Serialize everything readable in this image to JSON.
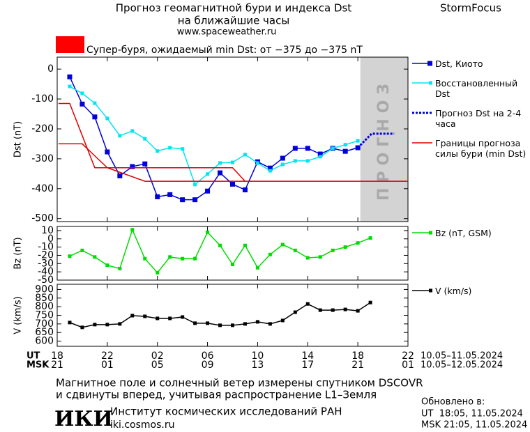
{
  "header": {
    "title": "Прогноз геомагнитной бури и индекса Dst",
    "subtitle": "на ближайшие часы",
    "url": "www.spaceweather.ru",
    "brand": "StormFocus"
  },
  "alert": {
    "color": "#ff0000",
    "text": "Супер-буря, ожидаемый min Dst: от −375 до −375 nT"
  },
  "chart_data": [
    {
      "type": "line",
      "ylabel": "Dst (nT)",
      "xlim": [
        0,
        28
      ],
      "ylim": [
        -510,
        40
      ],
      "yticks": [
        0,
        -100,
        -200,
        -300,
        -400,
        -500
      ],
      "forecast_region": {
        "x": [
          24.2,
          28
        ],
        "label": "ПРОГНОЗ",
        "color": "#d3d3d3"
      },
      "series": [
        {
          "name": "Dst, Киото",
          "color": "#0000dd",
          "marker": "square",
          "x": [
            1,
            2,
            3,
            4,
            5,
            6,
            7,
            8,
            9,
            10,
            11,
            12,
            13,
            14,
            15,
            16,
            17,
            18,
            19,
            20,
            21,
            22,
            23,
            24
          ],
          "values": [
            -26,
            -117,
            -160,
            -277,
            -357,
            -326,
            -317,
            -427,
            -420,
            -437,
            -437,
            -408,
            -347,
            -385,
            -404,
            -310,
            -331,
            -298,
            -265,
            -265,
            -284,
            -265,
            -275,
            -263
          ]
        },
        {
          "name": "Восстановленный Dst",
          "color": "#00e5ee",
          "marker": "small-square",
          "x": [
            1,
            2,
            3,
            4,
            5,
            6,
            7,
            8,
            9,
            10,
            11,
            12,
            13,
            14,
            15,
            16,
            17,
            18,
            19,
            20,
            21,
            22,
            23,
            24
          ],
          "values": [
            -58,
            -81,
            -114,
            -165,
            -223,
            -207,
            -233,
            -274,
            -263,
            -267,
            -386,
            -351,
            -314,
            -312,
            -286,
            -314,
            -340,
            -319,
            -307,
            -307,
            -293,
            -265,
            -253,
            -240
          ]
        },
        {
          "name": "Прогноз Dst на 2-4 часа",
          "color": "#0000dd",
          "style": "dotted",
          "x": [
            24,
            25.1,
            26.9
          ],
          "values": [
            -263,
            -216,
            -216
          ]
        },
        {
          "name": "Границы прогноза силы бури (min Dst)",
          "color": "#dd0000",
          "x": [
            0.1,
            1,
            3,
            14,
            15,
            28,
            null,
            0.1,
            2,
            4,
            7,
            28
          ],
          "values": [
            -115,
            -115,
            -330,
            -330,
            -375,
            -375,
            null,
            -250,
            -250,
            -330,
            -375,
            -375
          ]
        }
      ]
    },
    {
      "type": "line",
      "ylabel": "Bz (nT)",
      "xlim": [
        0,
        28
      ],
      "ylim": [
        -50,
        15
      ],
      "yticks": [
        10,
        0,
        -10,
        -20,
        -30,
        -40,
        -50
      ],
      "series": [
        {
          "name": "Bz (nT, GSM)",
          "color": "#00dd00",
          "marker": "small-square",
          "x": [
            1,
            2,
            3,
            4,
            5,
            6,
            7,
            8,
            9,
            10,
            11,
            12,
            13,
            14,
            15,
            16,
            17,
            18,
            19,
            20,
            21,
            22,
            23,
            24,
            25
          ],
          "values": [
            -21,
            -14,
            -22,
            -32,
            -36,
            11,
            -24,
            -41,
            -22,
            -24,
            -24,
            8,
            -8,
            -31,
            -8,
            -35,
            -19,
            -7,
            -14,
            -23,
            -22,
            -14,
            -10,
            -5,
            1
          ]
        }
      ]
    },
    {
      "type": "line",
      "ylabel": "V (km/s)",
      "xlim": [
        0,
        28
      ],
      "ylim": [
        570,
        930
      ],
      "yticks": [
        900,
        850,
        800,
        750,
        700,
        650,
        600
      ],
      "xticks": [
        {
          "value": 0,
          "label": "18"
        },
        {
          "value": 4,
          "label": "22"
        },
        {
          "value": 8,
          "label": "02"
        },
        {
          "value": 12,
          "label": "06"
        },
        {
          "value": 16,
          "label": "10"
        },
        {
          "value": 20,
          "label": "14"
        },
        {
          "value": 24,
          "label": "18"
        },
        {
          "value": 28,
          "label": "22"
        }
      ],
      "series": [
        {
          "name": "V (km/s)",
          "color": "#000000",
          "marker": "small-square",
          "x": [
            1,
            2,
            3,
            4,
            5,
            6,
            7,
            8,
            9,
            10,
            11,
            12,
            13,
            14,
            15,
            16,
            17,
            18,
            19,
            20,
            21,
            22,
            23,
            24,
            25
          ],
          "values": [
            708,
            680,
            696,
            696,
            700,
            748,
            744,
            732,
            732,
            740,
            704,
            704,
            692,
            692,
            700,
            712,
            700,
            720,
            768,
            816,
            780,
            780,
            784,
            776,
            824
          ]
        }
      ]
    }
  ],
  "time_axis": {
    "ut_label": "UT",
    "msk_label": "MSK",
    "ut_dates": "10.05–11.05.2024",
    "msk_dates": "10.05–12.05.2024",
    "msk_ticks": [
      {
        "value": 0,
        "label": "21"
      },
      {
        "value": 4,
        "label": "01"
      },
      {
        "value": 8,
        "label": "05"
      },
      {
        "value": 12,
        "label": "09"
      },
      {
        "value": 16,
        "label": "13"
      },
      {
        "value": 20,
        "label": "17"
      },
      {
        "value": 24,
        "label": "21"
      },
      {
        "value": 28,
        "label": "01"
      }
    ]
  },
  "footer": {
    "note_line1": "Магнитное поле и солнечный ветер измерены спутником DSCOVR",
    "note_line2": "и сдвинуты вперед, учитывая распространение L1–Земля",
    "logo": "ИКИ",
    "institute": "Институт космических исследований РАН",
    "site": "iki.cosmos.ru",
    "updated": "Обновлено в:",
    "updated_ut": "UT  18:05, 11.05.2024",
    "updated_msk": "MSK 21:05, 11.05.2024"
  }
}
